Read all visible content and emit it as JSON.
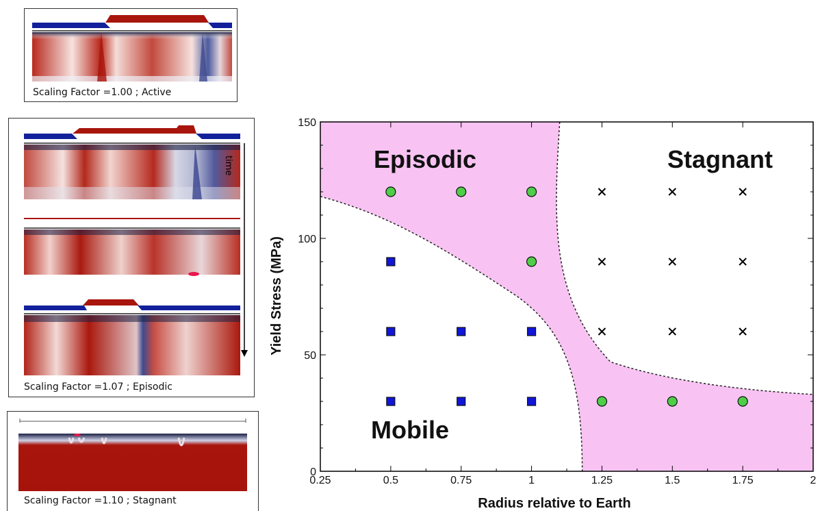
{
  "panels": {
    "active": {
      "caption": "Scaling Factor =1.00 ; Active"
    },
    "episodic": {
      "caption": "Scaling Factor =1.07 ; Episodic",
      "time_label": "time"
    },
    "stagnant": {
      "caption": "Scaling Factor =1.10 ; Stagnant"
    }
  },
  "colors": {
    "hot_red": "#a8150c",
    "cold_blue": "#12219b",
    "episodic_fill": "#f8c3f3",
    "green_marker": "#4fce48",
    "blue_marker": "#1016d8"
  },
  "chart_data": {
    "type": "scatter",
    "xlabel": "Radius relative to Earth",
    "ylabel": "Yield Stress (MPa)",
    "xlim": [
      0.25,
      2
    ],
    "ylim": [
      0,
      150
    ],
    "xticks": [
      "0.25",
      "0.5",
      "0.75",
      "1",
      "1.25",
      "1.5",
      "1.75",
      "2"
    ],
    "yticks": [
      "0",
      "50",
      "100",
      "150"
    ],
    "regions": [
      {
        "label": "Episodic"
      },
      {
        "label": "Stagnant"
      },
      {
        "label": "Mobile"
      }
    ],
    "series": [
      {
        "marker": "circle",
        "points": [
          [
            0.5,
            120
          ],
          [
            0.75,
            120
          ],
          [
            1,
            120
          ],
          [
            1,
            90
          ],
          [
            1.25,
            30
          ],
          [
            1.5,
            30
          ],
          [
            1.75,
            30
          ]
        ]
      },
      {
        "marker": "square",
        "points": [
          [
            0.5,
            90
          ],
          [
            0.5,
            60
          ],
          [
            0.75,
            60
          ],
          [
            1,
            60
          ],
          [
            0.5,
            30
          ],
          [
            0.75,
            30
          ],
          [
            1,
            30
          ]
        ]
      },
      {
        "marker": "cross",
        "points": [
          [
            1.25,
            120
          ],
          [
            1.5,
            120
          ],
          [
            1.75,
            120
          ],
          [
            1.25,
            90
          ],
          [
            1.5,
            90
          ],
          [
            1.75,
            90
          ],
          [
            1.25,
            60
          ],
          [
            1.5,
            60
          ],
          [
            1.75,
            60
          ]
        ]
      }
    ]
  }
}
